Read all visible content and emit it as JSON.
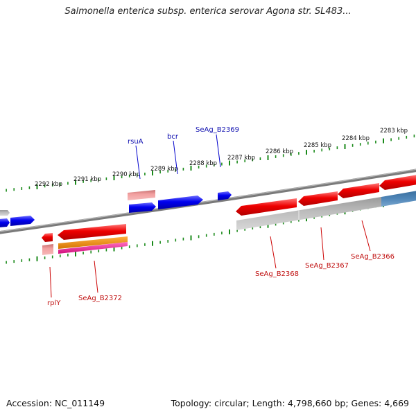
{
  "title": "Salmonella enterica subsp. enterica serovar Agona str. SL483...",
  "footer": {
    "accession": "Accession: NC_011149",
    "topology": "Topology: circular; Length: 4,798,660 bp; Genes: 4,669"
  },
  "colors": {
    "backbone": "#7a7a7a",
    "tick": "#1a8a1a",
    "forward_gene": "#0000ee",
    "reverse_gene": "#ee0000",
    "pseudo_gene": "#e88888",
    "grey_feature": "#b4b4b4",
    "steel_feature": "#4f86b8",
    "orange_feature": "#f08c00",
    "pink_feature": "#f03c9c",
    "forward_label": "#1010b0",
    "reverse_label": "#c01010"
  },
  "scale_labels": [
    "2292 kbp",
    "2291 kbp",
    "2290 kbp",
    "2289 kbp",
    "2288 kbp",
    "2287 kbp",
    "2286 kbp",
    "2285 kbp",
    "2284 kbp",
    "2283 kbp"
  ],
  "forward_gene_labels": [
    "rsuA",
    "bcr",
    "SeAg_B2369"
  ],
  "reverse_gene_labels": [
    "rplY",
    "SeAg_B2372",
    "SeAg_B2368",
    "SeAg_B2367",
    "SeAg_B2366"
  ]
}
